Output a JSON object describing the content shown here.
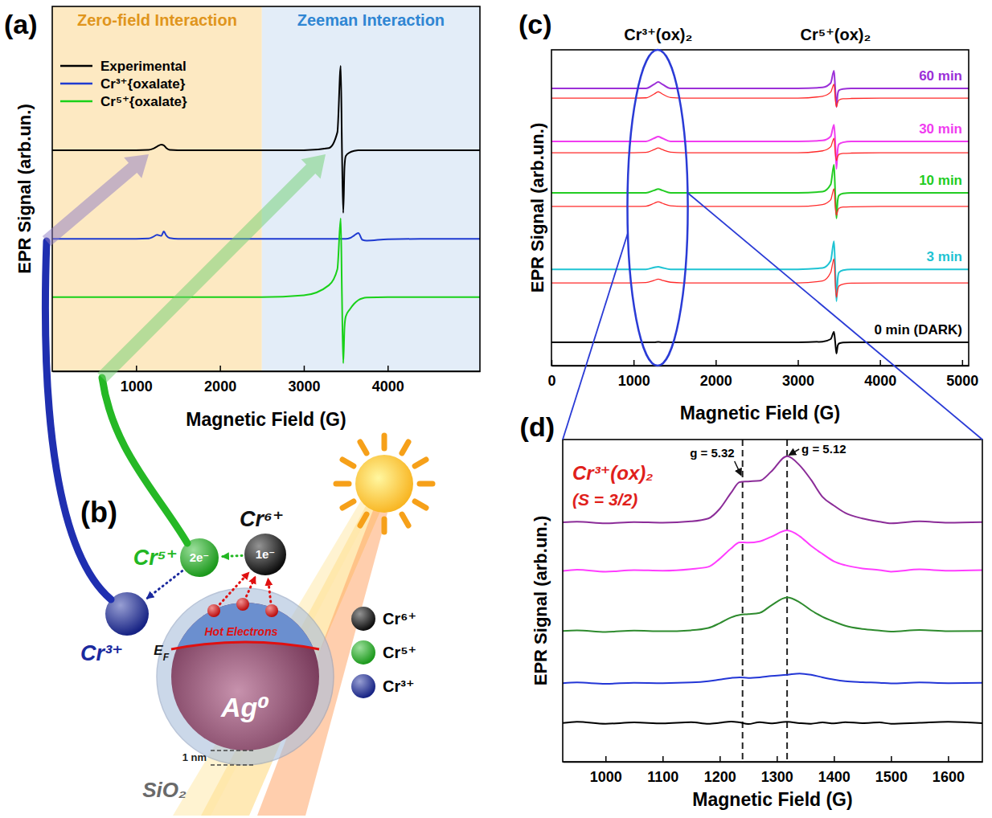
{
  "chart_data": [
    {
      "type": "line",
      "label": "(a)",
      "x_label": "Magnetic Field (G)",
      "y_label": "EPR Signal (arb.un.)",
      "xlim": [
        0,
        5100
      ],
      "xticks": [
        1000,
        2000,
        3000,
        4000
      ],
      "ylim": [
        0,
        10
      ],
      "tick_labels": "x",
      "legend": "upper left",
      "spans": [
        {
          "label": "Zero-field Interaction",
          "from": 0,
          "to": 2500,
          "color": "#fde9c2"
        },
        {
          "label": "Zeeman Interaction",
          "from": 2500,
          "to": 5100,
          "color": "#e3edf8"
        }
      ],
      "x": [
        0,
        500,
        1000,
        1150,
        1200,
        1250,
        1300,
        1330,
        1360,
        1400,
        1500,
        2000,
        2500,
        3000,
        3300,
        3400,
        3440,
        3455,
        3470,
        3485,
        3500,
        3550,
        3600,
        3650,
        3700,
        3750,
        4000,
        4500,
        5000,
        5100
      ],
      "series": [
        {
          "name": "Experimental",
          "color": "#000000",
          "values": [
            6.06,
            6.06,
            6.06,
            6.07,
            6.1,
            6.16,
            6.21,
            6.19,
            6.12,
            6.07,
            6.06,
            6.06,
            6.06,
            6.06,
            6.12,
            6.55,
            8.37,
            6.06,
            4.34,
            5.6,
            5.9,
            6.0,
            6.04,
            6.06,
            6.06,
            6.06,
            6.06,
            6.06,
            6.06,
            6.06
          ]
        },
        {
          "name": "Cr³⁺{oxalate}",
          "color": "#1f3bd1",
          "values": [
            3.63,
            3.63,
            3.63,
            3.64,
            3.68,
            3.74,
            3.71,
            3.83,
            3.72,
            3.65,
            3.63,
            3.63,
            3.63,
            3.63,
            3.63,
            3.63,
            3.63,
            3.63,
            3.63,
            3.63,
            3.63,
            3.65,
            3.72,
            3.79,
            3.6,
            3.58,
            3.62,
            3.63,
            3.63,
            3.63
          ]
        },
        {
          "name": "Cr⁵⁺{oxalate}",
          "color": "#19d119",
          "values": [
            2.03,
            2.03,
            2.03,
            2.03,
            2.03,
            2.03,
            2.03,
            2.03,
            2.03,
            2.03,
            2.03,
            2.03,
            2.03,
            2.08,
            2.36,
            2.8,
            4.19,
            2.03,
            0.22,
            1.2,
            1.5,
            1.7,
            1.85,
            1.95,
            2.0,
            2.02,
            2.03,
            2.03,
            2.03,
            2.03
          ]
        }
      ]
    },
    {
      "type": "line",
      "label": "(c)",
      "x_label": "Magnetic Field (G)",
      "y_label": "EPR Signal (arb.un.)",
      "xlim": [
        0,
        5080
      ],
      "xticks": [
        0,
        1000,
        2000,
        3000,
        4000,
        5000
      ],
      "ylim": [
        0,
        10
      ],
      "tick_labels": "x",
      "annotations": [
        {
          "text": "Cr³⁺(ox)₂",
          "x": 1300
        },
        {
          "text": "Cr⁵⁺(ox)₂",
          "x": 3460
        }
      ],
      "x": [
        0,
        500,
        1000,
        1150,
        1250,
        1300,
        1350,
        1450,
        1600,
        2000,
        2500,
        3000,
        3300,
        3400,
        3440,
        3455,
        3470,
        3485,
        3500,
        3550,
        3650,
        4000,
        4500,
        5000,
        5080
      ],
      "series": [
        {
          "name": "0 min (DARK)",
          "color": "#000000",
          "values": [
            0.74,
            0.74,
            0.74,
            0.74,
            0.74,
            0.75,
            0.74,
            0.74,
            0.74,
            0.74,
            0.74,
            0.74,
            0.76,
            0.84,
            1.07,
            0.74,
            0.38,
            0.63,
            0.7,
            0.73,
            0.74,
            0.74,
            0.74,
            0.74,
            0.74
          ]
        },
        {
          "name": "3 min",
          "color": "#1ec3d3",
          "values": [
            3.05,
            3.05,
            3.05,
            3.05,
            3.11,
            3.13,
            3.1,
            3.05,
            3.05,
            3.05,
            3.05,
            3.05,
            3.09,
            3.32,
            3.94,
            3.05,
            2.04,
            2.75,
            2.95,
            3.02,
            3.05,
            3.05,
            3.05,
            3.05,
            3.05
          ]
        },
        {
          "color": "#ff2a2a",
          "values": [
            2.62,
            2.62,
            2.62,
            2.63,
            2.7,
            2.74,
            2.7,
            2.64,
            2.62,
            2.62,
            2.62,
            2.62,
            2.68,
            2.95,
            3.38,
            2.62,
            2.16,
            2.4,
            2.52,
            2.58,
            2.61,
            2.62,
            2.62,
            2.62,
            2.62
          ]
        },
        {
          "name": "10 min",
          "color": "#22cc22",
          "values": [
            5.47,
            5.47,
            5.47,
            5.47,
            5.55,
            5.59,
            5.55,
            5.47,
            5.47,
            5.47,
            5.47,
            5.47,
            5.51,
            5.74,
            6.36,
            5.47,
            4.66,
            5.23,
            5.39,
            5.45,
            5.47,
            5.47,
            5.47,
            5.47,
            5.47
          ]
        },
        {
          "color": "#ff2a2a",
          "values": [
            5.04,
            5.04,
            5.04,
            5.05,
            5.14,
            5.19,
            5.14,
            5.06,
            5.04,
            5.04,
            5.04,
            5.04,
            5.1,
            5.25,
            5.6,
            5.04,
            4.76,
            4.9,
            4.98,
            5.02,
            5.03,
            5.04,
            5.04,
            5.04,
            5.04
          ]
        },
        {
          "name": "30 min",
          "color": "#f03cf0",
          "values": [
            7.1,
            7.1,
            7.1,
            7.1,
            7.2,
            7.25,
            7.2,
            7.1,
            7.1,
            7.1,
            7.1,
            7.1,
            7.13,
            7.26,
            7.63,
            7.1,
            6.23,
            6.84,
            7.01,
            7.07,
            7.1,
            7.1,
            7.1,
            7.1,
            7.1
          ]
        },
        {
          "color": "#ff2a2a",
          "values": [
            6.74,
            6.74,
            6.74,
            6.75,
            6.84,
            6.89,
            6.84,
            6.76,
            6.74,
            6.74,
            6.74,
            6.74,
            6.8,
            6.93,
            7.2,
            6.74,
            6.49,
            6.62,
            6.69,
            6.72,
            6.73,
            6.74,
            6.74,
            6.74,
            6.74
          ]
        },
        {
          "name": "60 min",
          "color": "#9b2fd8",
          "values": [
            8.78,
            8.78,
            8.78,
            8.78,
            8.91,
            8.98,
            8.91,
            8.78,
            8.78,
            8.78,
            8.78,
            8.78,
            8.81,
            8.95,
            9.34,
            8.78,
            8.19,
            8.6,
            8.72,
            8.76,
            8.78,
            8.78,
            8.78,
            8.78,
            8.78
          ]
        },
        {
          "color": "#ff2a2a",
          "values": [
            8.47,
            8.47,
            8.47,
            8.48,
            8.6,
            8.67,
            8.6,
            8.49,
            8.47,
            8.47,
            8.47,
            8.47,
            8.53,
            8.66,
            8.91,
            8.47,
            8.19,
            8.33,
            8.41,
            8.45,
            8.46,
            8.47,
            8.47,
            8.47,
            8.47
          ]
        }
      ]
    },
    {
      "type": "line",
      "label": "(d)",
      "x_label": "Magnetic Field (G)",
      "y_label": "EPR Signal (arb.un.)",
      "xlim": [
        925,
        1660
      ],
      "xticks": [
        1000,
        1100,
        1200,
        1300,
        1400,
        1500,
        1600
      ],
      "ylim": [
        0,
        10
      ],
      "tick_labels": "x",
      "annotations": [
        "Cr³⁺(ox)₂",
        "(S = 3/2)"
      ],
      "vlines": [
        {
          "x": 1240,
          "label": "g = 5.32"
        },
        {
          "x": 1318,
          "label": "g = 5.12"
        }
      ],
      "x": [
        925,
        950,
        1000,
        1050,
        1100,
        1150,
        1180,
        1200,
        1220,
        1235,
        1250,
        1270,
        1290,
        1318,
        1340,
        1360,
        1380,
        1400,
        1420,
        1450,
        1480,
        1500,
        1550,
        1600,
        1660
      ],
      "series": [
        {
          "color": "#000000",
          "values": [
            1.2,
            1.24,
            1.18,
            1.22,
            1.19,
            1.23,
            1.18,
            1.21,
            1.25,
            1.22,
            1.17,
            1.23,
            1.19,
            1.24,
            1.2,
            1.18,
            1.22,
            1.19,
            1.23,
            1.2,
            1.22,
            1.18,
            1.21,
            1.24,
            1.2
          ]
        },
        {
          "color": "#2336d6",
          "values": [
            2.44,
            2.46,
            2.42,
            2.45,
            2.44,
            2.46,
            2.5,
            2.55,
            2.6,
            2.62,
            2.6,
            2.62,
            2.66,
            2.7,
            2.74,
            2.7,
            2.62,
            2.55,
            2.5,
            2.47,
            2.45,
            2.43,
            2.46,
            2.44,
            2.45
          ]
        },
        {
          "color": "#2e8b2e",
          "values": [
            4.06,
            4.08,
            4.03,
            4.07,
            4.05,
            4.08,
            4.15,
            4.3,
            4.48,
            4.56,
            4.58,
            4.62,
            4.85,
            5.1,
            4.95,
            4.7,
            4.5,
            4.35,
            4.22,
            4.12,
            4.07,
            4.04,
            4.09,
            4.05,
            4.06
          ]
        },
        {
          "color": "#ff3dff",
          "values": [
            5.92,
            5.96,
            5.9,
            5.95,
            5.93,
            5.98,
            6.05,
            6.3,
            6.62,
            6.81,
            6.8,
            6.84,
            6.98,
            7.18,
            7.0,
            6.7,
            6.45,
            6.22,
            6.1,
            6.0,
            5.95,
            5.9,
            5.97,
            5.93,
            5.95
          ]
        },
        {
          "color": "#8b2c98",
          "values": [
            7.43,
            7.45,
            7.4,
            7.44,
            7.42,
            7.46,
            7.55,
            7.85,
            8.35,
            8.68,
            8.7,
            8.72,
            9.0,
            9.48,
            9.2,
            8.75,
            8.22,
            7.95,
            7.72,
            7.55,
            7.45,
            7.4,
            7.46,
            7.42,
            7.44
          ]
        }
      ]
    }
  ],
  "diagram": {
    "label": "(b)",
    "species": [
      {
        "label": "Cr⁶⁺",
        "electrons": "1e⁻",
        "color": "#111111"
      },
      {
        "label": "Cr⁵⁺",
        "electrons": "2e⁻",
        "color": "#22b722"
      },
      {
        "label": "Cr³⁺",
        "color": "#1b2a9e"
      }
    ],
    "hot_electrons": "Hot Electrons",
    "fermi_level": {
      "symbol": "E",
      "subscript": "F"
    },
    "core": "Ag⁰",
    "shell": "SiO₂",
    "shell_thickness": "1 nm",
    "key": [
      "Cr⁶⁺",
      "Cr⁵⁺",
      "Cr³⁺"
    ]
  }
}
